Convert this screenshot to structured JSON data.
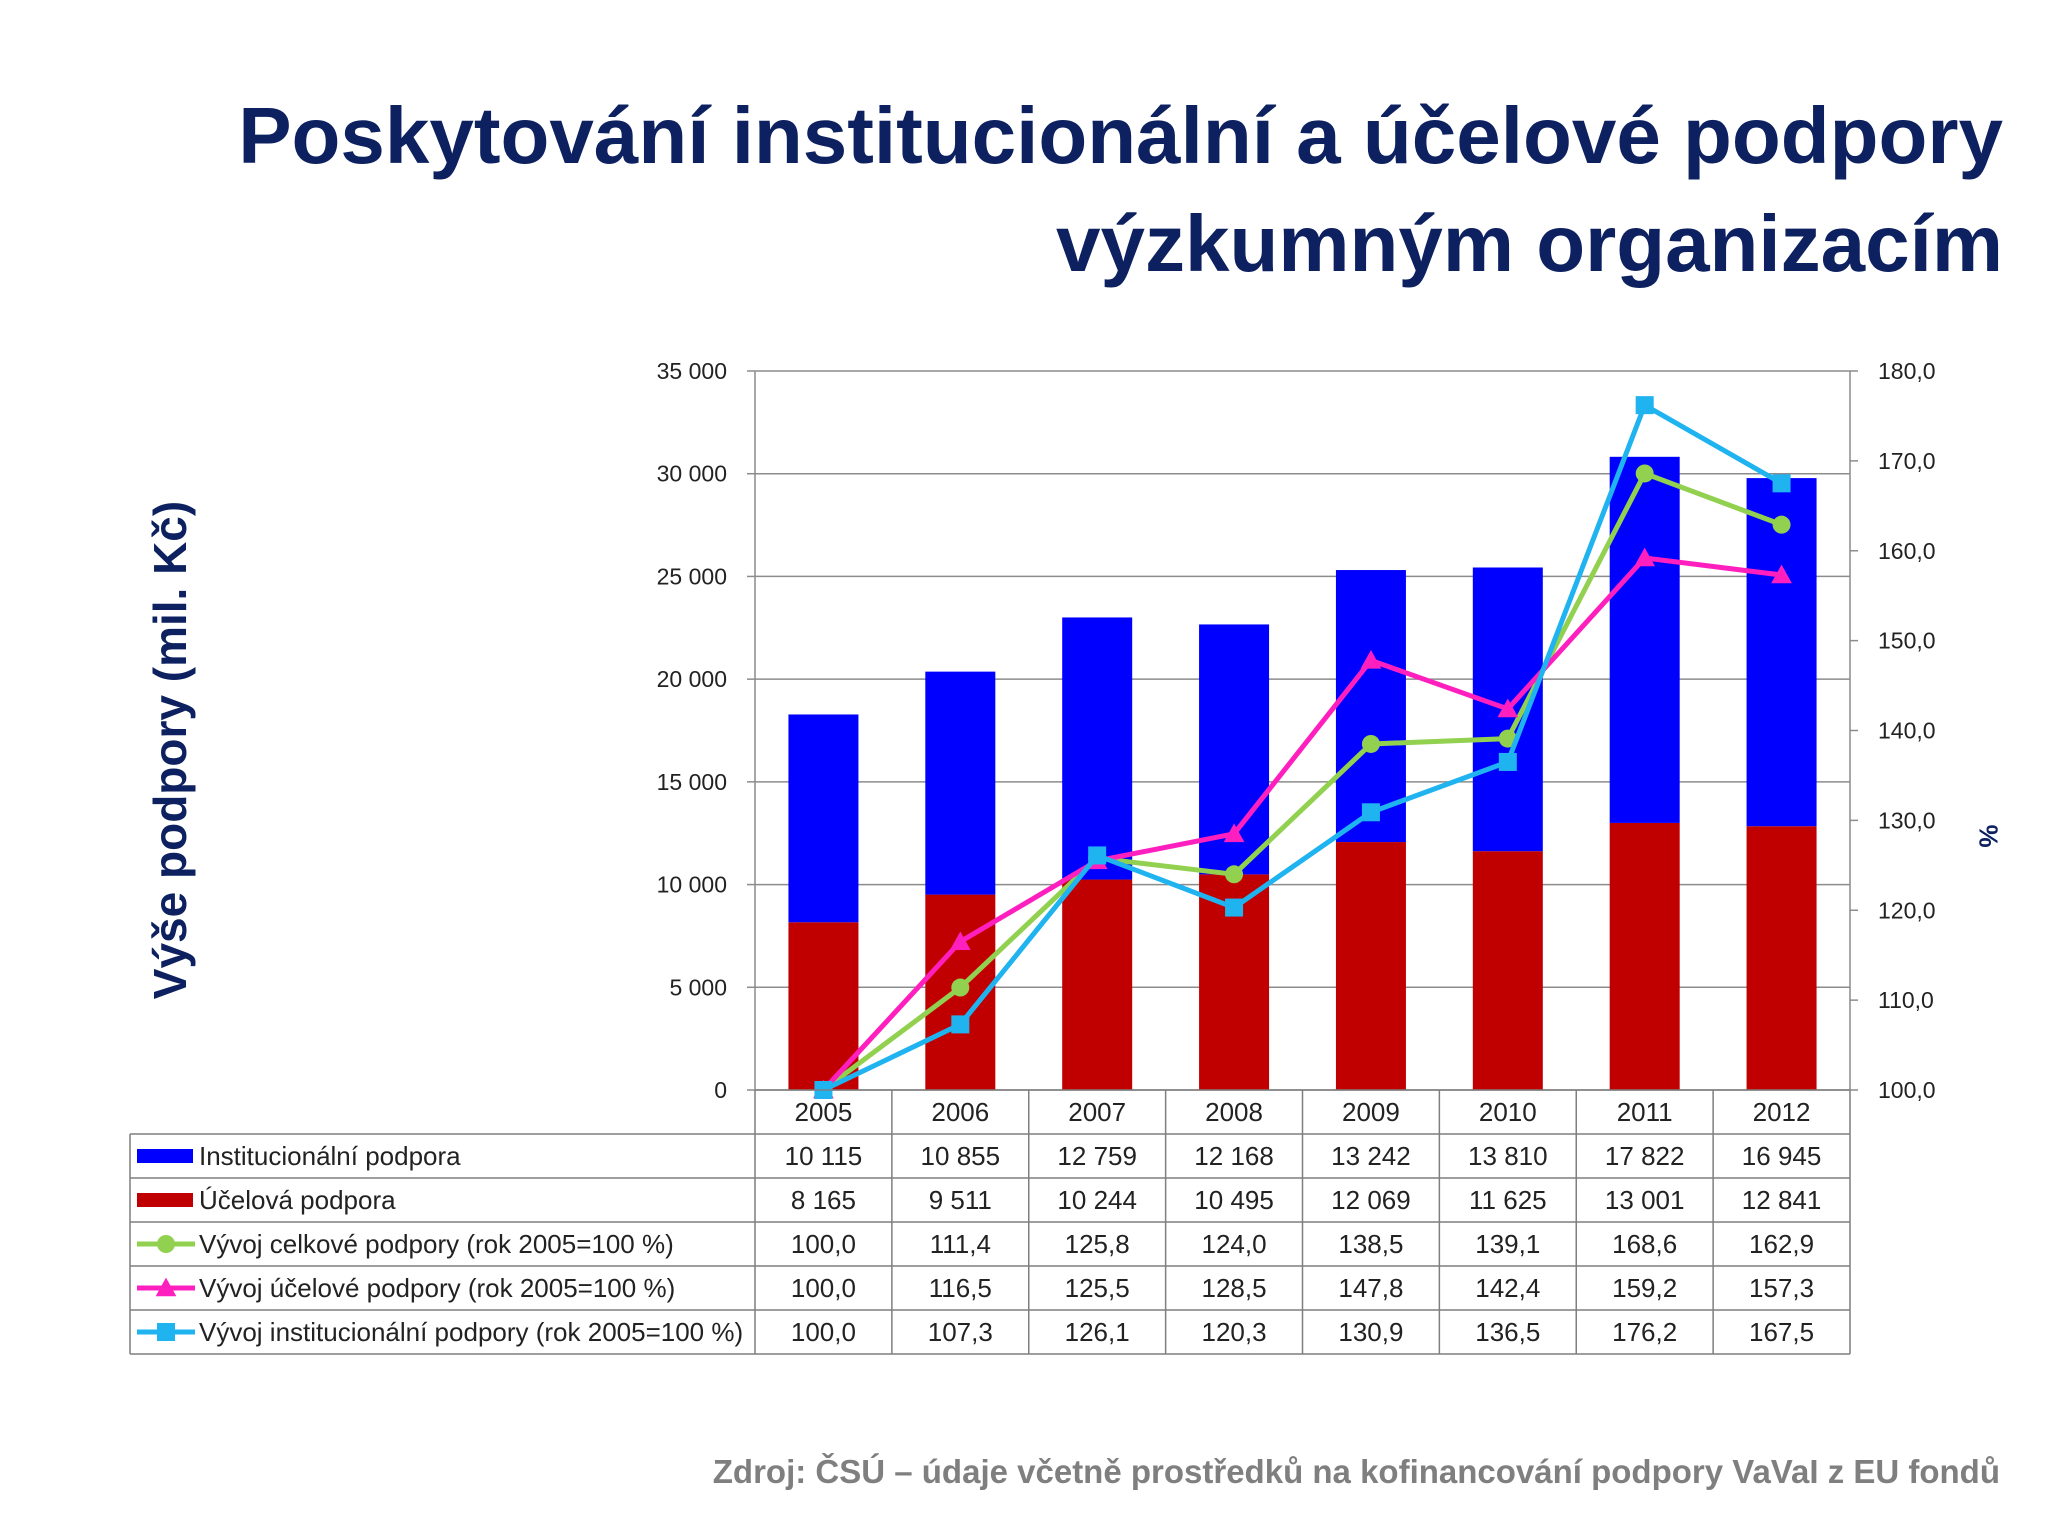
{
  "title": {
    "line1": "Poskytování institucionální a účelové podpory",
    "line2": "výzkumným organizacím"
  },
  "source": "Zdroj: ČSÚ – údaje včetně prostředků na kofinancování podpory VaVaI z EU fondů",
  "colors": {
    "title": "#0d2160",
    "institucionalni": "#0000ff",
    "ucelova": "#c00000",
    "celkova_line": "#92d050",
    "ucelova_line": "#ff1fbf",
    "institucionalni_line": "#1fb3f0",
    "source": "#7f7f7f"
  },
  "chart_data": {
    "type": "bar",
    "stacked": true,
    "categories": [
      "2005",
      "2006",
      "2007",
      "2008",
      "2009",
      "2010",
      "2011",
      "2012"
    ],
    "ylabel": "Výše podpory (mil. Kč)",
    "y2label": "%",
    "ylim": [
      0,
      35000
    ],
    "y2lim": [
      100,
      180
    ],
    "y_ticks": [
      "0",
      "5 000",
      "10 000",
      "15 000",
      "20 000",
      "25 000",
      "30 000",
      "35 000"
    ],
    "y2_ticks": [
      "100,0",
      "110,0",
      "120,0",
      "130,0",
      "140,0",
      "150,0",
      "160,0",
      "170,0",
      "180,0"
    ],
    "grid": true,
    "legend_placement": "data table below chart",
    "series": [
      {
        "name": "Institucionální podpora",
        "kind": "bar",
        "axis": "left",
        "marker": "rect",
        "color": "#0000ff",
        "values": [
          10115,
          10855,
          12759,
          12168,
          13242,
          13810,
          17822,
          16945
        ],
        "labels": [
          "10 115",
          "10 855",
          "12 759",
          "12 168",
          "13 242",
          "13 810",
          "17 822",
          "16 945"
        ]
      },
      {
        "name": "Účelová podpora",
        "kind": "bar",
        "axis": "left",
        "marker": "rect",
        "color": "#c00000",
        "values": [
          8165,
          9511,
          10244,
          10495,
          12069,
          11625,
          13001,
          12841
        ],
        "labels": [
          "8 165",
          "9 511",
          "10 244",
          "10 495",
          "12 069",
          "11 625",
          "13 001",
          "12 841"
        ]
      },
      {
        "name": "Vývoj celkové podpory (rok 2005=100 %)",
        "kind": "line",
        "axis": "right",
        "marker": "circle",
        "color": "#92d050",
        "values": [
          100.0,
          111.4,
          125.8,
          124.0,
          138.5,
          139.1,
          168.6,
          162.9
        ],
        "labels": [
          "100,0",
          "111,4",
          "125,8",
          "124,0",
          "138,5",
          "139,1",
          "168,6",
          "162,9"
        ]
      },
      {
        "name": "Vývoj účelové podpory (rok 2005=100 %)",
        "kind": "line",
        "axis": "right",
        "marker": "triangle",
        "color": "#ff1fbf",
        "values": [
          100.0,
          116.5,
          125.5,
          128.5,
          147.8,
          142.4,
          159.2,
          157.3
        ],
        "labels": [
          "100,0",
          "116,5",
          "125,5",
          "128,5",
          "147,8",
          "142,4",
          "159,2",
          "157,3"
        ]
      },
      {
        "name": "Vývoj institucionální podpory (rok 2005=100 %)",
        "kind": "line",
        "axis": "right",
        "marker": "square",
        "color": "#1fb3f0",
        "values": [
          100.0,
          107.3,
          126.1,
          120.3,
          130.9,
          136.5,
          176.2,
          167.5
        ],
        "labels": [
          "100,0",
          "107,3",
          "126,1",
          "120,3",
          "130,9",
          "136,5",
          "176,2",
          "167,5"
        ]
      }
    ]
  }
}
